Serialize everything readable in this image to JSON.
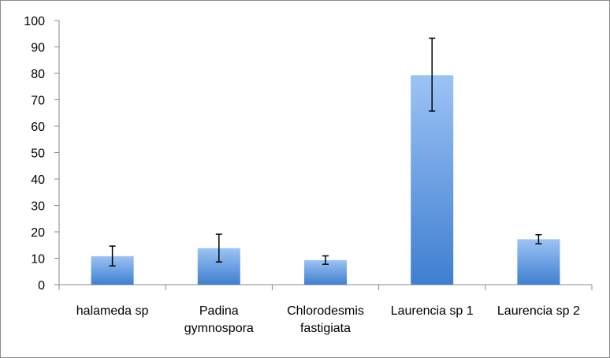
{
  "chart_data": {
    "type": "bar",
    "title": "",
    "xlabel": "",
    "ylabel": "",
    "ylim": [
      0,
      100
    ],
    "yticks": [
      0,
      10,
      20,
      30,
      40,
      50,
      60,
      70,
      80,
      90,
      100
    ],
    "categories": [
      [
        "halameda sp"
      ],
      [
        "Padina",
        "gymnospora"
      ],
      [
        "Chlorodesmis",
        "fastigiata"
      ],
      [
        "Laurencia sp 1"
      ],
      [
        "Laurencia sp 2"
      ]
    ],
    "values": [
      10.8,
      13.8,
      9.3,
      79.3,
      17.2
    ],
    "error_low": [
      7.1,
      8.6,
      7.7,
      65.7,
      15.5
    ],
    "error_high": [
      14.6,
      19.1,
      10.9,
      93.3,
      18.9
    ],
    "grid": false,
    "legend": "none",
    "colors": {
      "bar_top": "#9cc3f5",
      "bar_bottom": "#3f7fd0",
      "axis": "#888888",
      "error_bar": "#000000"
    }
  }
}
